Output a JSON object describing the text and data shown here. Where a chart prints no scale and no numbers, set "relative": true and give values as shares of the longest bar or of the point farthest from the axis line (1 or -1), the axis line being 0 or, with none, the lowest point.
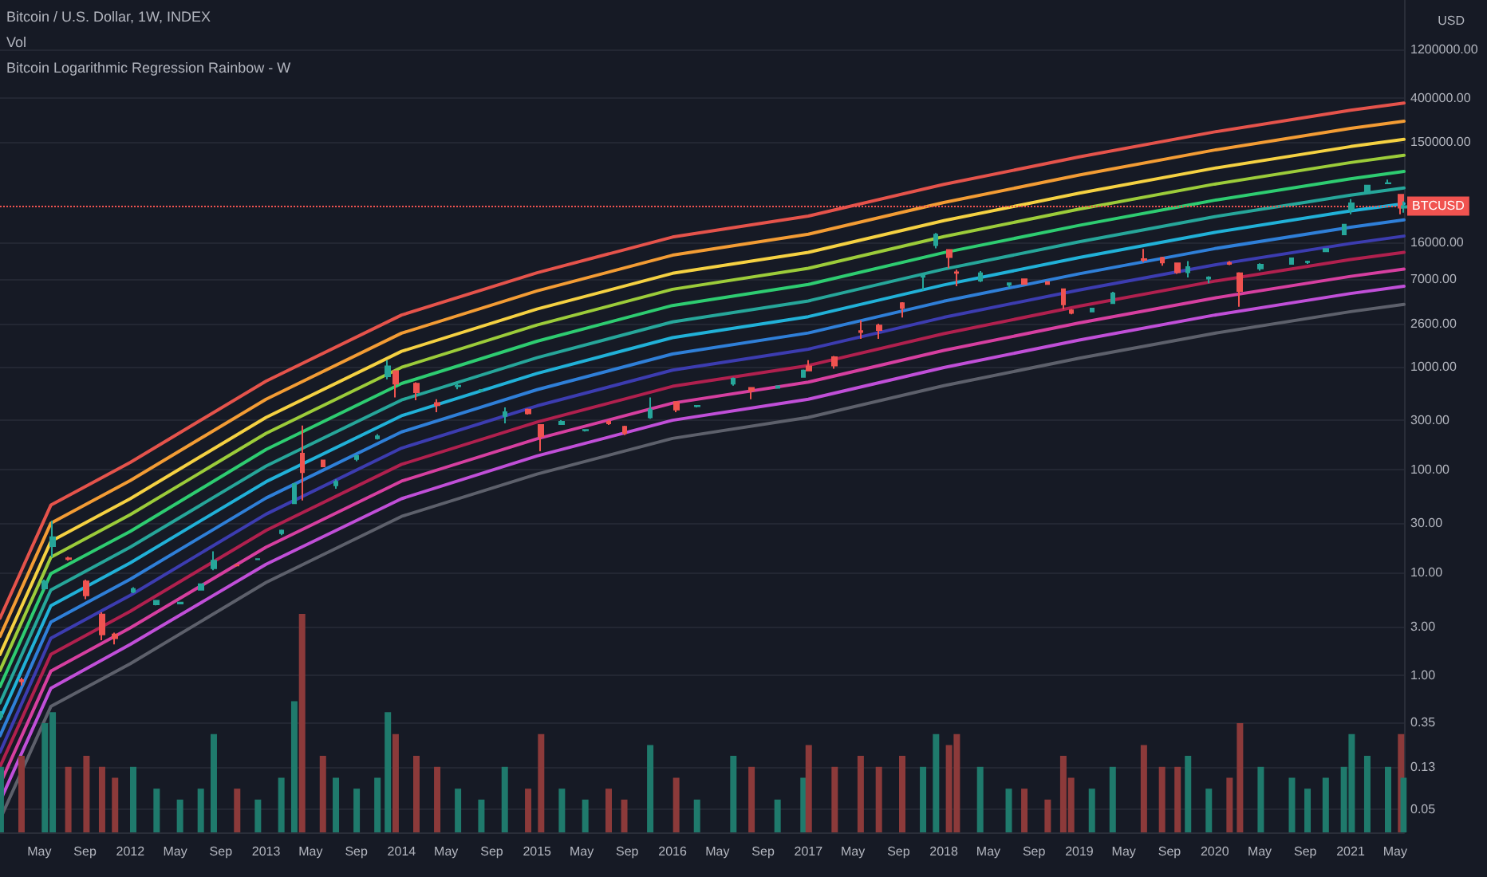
{
  "chart_data": [
    {
      "type": "candlestick",
      "title": "Bitcoin / U.S. Dollar, 1W, INDEX",
      "ylabel": "USD",
      "annotations": [
        "Bitcoin Logarithmic Regression Rainbow - W"
      ],
      "x": [
        "2011-01-17",
        "2011-03-14",
        "2011-05-16",
        "2011-06-06",
        "2011-07-18",
        "2011-09-05",
        "2011-10-17",
        "2011-11-21",
        "2012-01-09",
        "2012-03-12",
        "2012-05-14",
        "2012-07-09",
        "2012-08-13",
        "2012-10-15",
        "2012-12-10",
        "2013-02-11",
        "2013-03-18",
        "2013-04-08",
        "2013-06-03",
        "2013-07-08",
        "2013-09-02",
        "2013-10-28",
        "2013-11-25",
        "2013-12-16",
        "2014-02-10",
        "2014-04-07",
        "2014-06-02",
        "2014-08-04",
        "2014-10-06",
        "2014-12-08",
        "2015-01-12",
        "2015-03-09",
        "2015-05-11",
        "2015-07-13",
        "2015-08-24",
        "2015-11-02",
        "2016-01-11",
        "2016-03-07",
        "2016-06-13",
        "2016-08-01",
        "2016-10-10",
        "2016-12-19",
        "2017-01-02",
        "2017-03-13",
        "2017-05-22",
        "2017-07-10",
        "2017-09-11",
        "2017-11-06",
        "2017-12-11",
        "2018-01-15",
        "2018-02-05",
        "2018-04-09",
        "2018-06-25",
        "2018-08-06",
        "2018-10-08",
        "2018-11-19",
        "2018-12-10",
        "2019-02-04",
        "2019-04-01",
        "2019-06-24",
        "2019-08-12",
        "2019-09-23",
        "2019-10-21",
        "2019-12-16",
        "2020-02-10",
        "2020-03-09",
        "2020-05-04",
        "2020-07-27",
        "2020-09-07",
        "2020-10-26",
        "2020-12-14",
        "2021-01-04",
        "2021-02-15",
        "2021-04-12",
        "2021-05-17",
        "2021-05-24"
      ],
      "ohlc": [
        [
          0.4,
          0.45,
          0.38,
          0.42
        ],
        [
          0.9,
          0.95,
          0.8,
          0.88
        ],
        [
          7,
          8.5,
          6.8,
          8.2
        ],
        [
          18,
          31.9,
          14,
          22
        ],
        [
          13.7,
          14.2,
          13,
          13.5
        ],
        [
          8.2,
          8.5,
          5.5,
          6
        ],
        [
          3.9,
          4.1,
          2.2,
          2.5
        ],
        [
          2.5,
          2.6,
          2,
          2.3
        ],
        [
          6.5,
          7.2,
          6.3,
          6.9
        ],
        [
          4.9,
          5.4,
          4.8,
          5.3
        ],
        [
          5,
          5.1,
          4.9,
          5.1
        ],
        [
          6.8,
          7.8,
          6.7,
          7.7
        ],
        [
          11,
          16,
          10.5,
          13
        ],
        [
          11.8,
          12,
          11.6,
          11.7
        ],
        [
          13.4,
          13.6,
          13.2,
          13.5
        ],
        [
          24,
          26,
          23,
          25.5
        ],
        [
          47,
          74,
          46,
          72
        ],
        [
          142,
          266,
          50,
          94
        ],
        [
          122,
          124,
          105,
          107
        ],
        [
          70,
          80,
          65,
          76
        ],
        [
          126,
          138,
          120,
          135
        ],
        [
          200,
          220,
          195,
          210
        ],
        [
          800,
          1150,
          750,
          1000
        ],
        [
          900,
          900,
          500,
          680
        ],
        [
          680,
          700,
          470,
          560
        ],
        [
          440,
          480,
          360,
          420
        ],
        [
          640,
          680,
          600,
          650
        ],
        [
          580,
          600,
          560,
          590
        ],
        [
          330,
          400,
          280,
          360
        ],
        [
          380,
          390,
          340,
          350
        ],
        [
          270,
          275,
          150,
          210
        ],
        [
          275,
          300,
          270,
          290
        ],
        [
          240,
          245,
          233,
          242
        ],
        [
          290,
          300,
          270,
          280
        ],
        [
          260,
          265,
          215,
          225
        ],
        [
          320,
          500,
          310,
          380
        ],
        [
          450,
          460,
          360,
          380
        ],
        [
          410,
          420,
          400,
          415
        ],
        [
          680,
          780,
          650,
          760
        ],
        [
          620,
          630,
          480,
          580
        ],
        [
          620,
          650,
          615,
          640
        ],
        [
          790,
          930,
          780,
          910
        ],
        [
          1000,
          1150,
          900,
          910
        ],
        [
          1230,
          1260,
          950,
          1020
        ],
        [
          2200,
          2790,
          1850,
          2150
        ],
        [
          2500,
          2600,
          1850,
          2250
        ],
        [
          4100,
          4200,
          2980,
          3700
        ],
        [
          7400,
          7800,
          5500,
          7800
        ],
        [
          15000,
          19700,
          14000,
          19000
        ],
        [
          13500,
          13700,
          9000,
          11500
        ],
        [
          8200,
          8700,
          6000,
          8100
        ],
        [
          6800,
          8400,
          6600,
          8000
        ],
        [
          6200,
          6500,
          5800,
          6400
        ],
        [
          7000,
          7150,
          6200,
          6300
        ],
        [
          6600,
          6700,
          6200,
          6300
        ],
        [
          5600,
          5700,
          3600,
          4000
        ],
        [
          3500,
          3600,
          3200,
          3300
        ],
        [
          3400,
          3700,
          3350,
          3650
        ],
        [
          4100,
          5300,
          4100,
          5100
        ],
        [
          11000,
          13800,
          10300,
          10800
        ],
        [
          11300,
          11600,
          9500,
          10200
        ],
        [
          10000,
          10100,
          7900,
          8200
        ],
        [
          8200,
          10500,
          7300,
          9200
        ],
        [
          7100,
          7500,
          6400,
          7300
        ],
        [
          10100,
          10500,
          9600,
          9900
        ],
        [
          8000,
          8200,
          3800,
          5400
        ],
        [
          8900,
          10000,
          8500,
          9700
        ],
        [
          9900,
          11400,
          9900,
          11200
        ],
        [
          10300,
          10600,
          9900,
          10400
        ],
        [
          13100,
          14000,
          12900,
          13800
        ],
        [
          19100,
          24200,
          19000,
          23800
        ],
        [
          33000,
          42000,
          30000,
          38200
        ],
        [
          48000,
          58000,
          47000,
          57000
        ],
        [
          59800,
          64900,
          59000,
          60000
        ],
        [
          46400,
          46600,
          30000,
          34700
        ],
        [
          34700,
          40000,
          31000,
          36000
        ]
      ],
      "series": [
        {
          "type": "line",
          "color": "#5d606b",
          "x": [
            "2011-01-15",
            "2011-06-01",
            "2012-01-01",
            "2013-01-01",
            "2014-01-01",
            "2015-01-01",
            "2016-01-01",
            "2017-01-01",
            "2018-01-01",
            "2019-01-01",
            "2020-01-01",
            "2021-01-01",
            "2021-05-25"
          ],
          "values": [
            0.04,
            0.5,
            1.3,
            8,
            35,
            90,
            200,
            320,
            650,
            1200,
            2100,
            3400,
            4000
          ]
        },
        {
          "type": "line",
          "color": "#c04fd8",
          "x": [
            "2011-01-15",
            "2011-06-01",
            "2012-01-01",
            "2013-01-01",
            "2014-01-01",
            "2015-01-01",
            "2016-01-01",
            "2017-01-01",
            "2018-01-01",
            "2019-01-01",
            "2020-01-01",
            "2021-01-01",
            "2021-05-25"
          ],
          "values": [
            0.06,
            0.75,
            2,
            12,
            52,
            135,
            300,
            480,
            975,
            1800,
            3150,
            5100,
            6000
          ]
        },
        {
          "type": "line",
          "color": "#d63fa0",
          "x": [
            "2011-01-15",
            "2011-06-01",
            "2012-01-01",
            "2013-01-01",
            "2014-01-01",
            "2015-01-01",
            "2016-01-01",
            "2017-01-01",
            "2018-01-01",
            "2019-01-01",
            "2020-01-01",
            "2021-01-01",
            "2021-05-25"
          ],
          "values": [
            0.088,
            1.1,
            2.9,
            17.6,
            77,
            198,
            440,
            704,
            1430,
            2640,
            4620,
            7480,
            8800
          ]
        },
        {
          "type": "line",
          "color": "#b0204e",
          "x": [
            "2011-01-15",
            "2011-06-01",
            "2012-01-01",
            "2013-01-01",
            "2014-01-01",
            "2015-01-01",
            "2016-01-01",
            "2017-01-01",
            "2018-01-01",
            "2019-01-01",
            "2020-01-01",
            "2021-01-01",
            "2021-05-25"
          ],
          "values": [
            0.13,
            1.6,
            4.2,
            25.6,
            112,
            288,
            640,
            1020,
            2080,
            3840,
            6720,
            10900,
            12800
          ]
        },
        {
          "type": "line",
          "color": "#3c3cb0",
          "x": [
            "2011-01-15",
            "2011-06-01",
            "2012-01-01",
            "2013-01-01",
            "2014-01-01",
            "2015-01-01",
            "2016-01-01",
            "2017-01-01",
            "2018-01-01",
            "2019-01-01",
            "2020-01-01",
            "2021-01-01",
            "2021-05-25"
          ],
          "values": [
            0.18,
            2.3,
            6,
            36.8,
            161,
            414,
            920,
            1470,
            2990,
            5520,
            9660,
            15600,
            18400
          ]
        },
        {
          "type": "line",
          "color": "#2f7fd8",
          "x": [
            "2011-01-15",
            "2011-06-01",
            "2012-01-01",
            "2013-01-01",
            "2014-01-01",
            "2015-01-01",
            "2016-01-01",
            "2017-01-01",
            "2018-01-01",
            "2019-01-01",
            "2020-01-01",
            "2021-01-01",
            "2021-05-25"
          ],
          "values": [
            0.26,
            3.3,
            8.6,
            52.8,
            231,
            594,
            1320,
            2110,
            4290,
            7920,
            13900,
            22400,
            26400
          ]
        },
        {
          "type": "line",
          "color": "#21b1d8",
          "x": [
            "2011-01-15",
            "2011-06-01",
            "2012-01-01",
            "2013-01-01",
            "2014-01-01",
            "2015-01-01",
            "2016-01-01",
            "2017-01-01",
            "2018-01-01",
            "2019-01-01",
            "2020-01-01",
            "2021-01-01",
            "2021-05-25"
          ],
          "values": [
            0.38,
            4.75,
            12.4,
            76,
            332,
            855,
            1900,
            3040,
            6180,
            11400,
            20000,
            32300,
            38000
          ]
        },
        {
          "type": "line",
          "color": "#26a69a",
          "x": [
            "2011-01-15",
            "2011-06-01",
            "2012-01-01",
            "2013-01-01",
            "2014-01-01",
            "2015-01-01",
            "2016-01-01",
            "2017-01-01",
            "2018-01-01",
            "2019-01-01",
            "2020-01-01",
            "2021-01-01",
            "2021-05-25"
          ],
          "values": [
            0.54,
            6.75,
            17.6,
            108,
            472,
            1215,
            2700,
            4320,
            8780,
            16200,
            28400,
            45900,
            54000
          ]
        },
        {
          "type": "line",
          "color": "#2ecc71",
          "x": [
            "2011-01-15",
            "2011-06-01",
            "2012-01-01",
            "2013-01-01",
            "2014-01-01",
            "2015-01-01",
            "2016-01-01",
            "2017-01-01",
            "2018-01-01",
            "2019-01-01",
            "2020-01-01",
            "2021-01-01",
            "2021-05-25"
          ],
          "values": [
            0.78,
            9.75,
            25,
            156,
            682,
            1755,
            3900,
            6240,
            12700,
            23400,
            41000,
            66300,
            78000
          ]
        },
        {
          "type": "line",
          "color": "#9ccc3a",
          "x": [
            "2011-01-15",
            "2011-06-01",
            "2012-01-01",
            "2013-01-01",
            "2014-01-01",
            "2015-01-01",
            "2016-01-01",
            "2017-01-01",
            "2018-01-01",
            "2019-01-01",
            "2020-01-01",
            "2021-01-01",
            "2021-05-25"
          ],
          "values": [
            1.12,
            14,
            36.4,
            224,
            980,
            2520,
            5600,
            8960,
            18200,
            33600,
            58800,
            95200,
            112000
          ]
        },
        {
          "type": "line",
          "color": "#f5d142",
          "x": [
            "2011-01-15",
            "2011-06-01",
            "2012-01-01",
            "2013-01-01",
            "2014-01-01",
            "2015-01-01",
            "2016-01-01",
            "2017-01-01",
            "2018-01-01",
            "2019-01-01",
            "2020-01-01",
            "2021-01-01",
            "2021-05-25"
          ],
          "values": [
            1.6,
            20,
            52,
            320,
            1400,
            3600,
            8000,
            12800,
            26000,
            48000,
            84000,
            136000,
            160000
          ]
        },
        {
          "type": "line",
          "color": "#f39c34",
          "x": [
            "2011-01-15",
            "2011-06-01",
            "2012-01-01",
            "2013-01-01",
            "2014-01-01",
            "2015-01-01",
            "2016-01-01",
            "2017-01-01",
            "2018-01-01",
            "2019-01-01",
            "2020-01-01",
            "2021-01-01",
            "2021-05-25"
          ],
          "values": [
            2.4,
            30,
            78,
            480,
            2100,
            5400,
            12000,
            19200,
            39000,
            72000,
            126000,
            204000,
            240000
          ]
        },
        {
          "type": "line",
          "color": "#e5534b",
          "x": [
            "2011-01-15",
            "2011-06-01",
            "2012-01-01",
            "2013-01-01",
            "2014-01-01",
            "2015-01-01",
            "2016-01-01",
            "2017-01-01",
            "2018-01-01",
            "2019-01-01",
            "2020-01-01",
            "2021-01-01",
            "2021-05-25"
          ],
          "values": [
            3.6,
            45,
            117,
            720,
            3150,
            8100,
            18000,
            28800,
            58500,
            108000,
            189000,
            306000,
            360000
          ]
        }
      ],
      "ref_lines": [
        {
          "axis": "y",
          "value": 36000,
          "label": "BTCUSD",
          "color": "#f05350",
          "line_style": "dotted"
        }
      ],
      "log": "y",
      "grid": "y",
      "marker": "none",
      "line_style": "solid",
      "xlim": [
        "2011-01-15",
        "2021-05-25"
      ],
      "xticks": [
        {
          "value": "2011-05-01",
          "label": "May"
        },
        {
          "value": "2011-09-01",
          "label": "Sep"
        },
        {
          "value": "2012-01-01",
          "label": "2012"
        },
        {
          "value": "2012-05-01",
          "label": "May"
        },
        {
          "value": "2012-09-01",
          "label": "Sep"
        },
        {
          "value": "2013-01-01",
          "label": "2013"
        },
        {
          "value": "2013-05-01",
          "label": "May"
        },
        {
          "value": "2013-09-01",
          "label": "Sep"
        },
        {
          "value": "2014-01-01",
          "label": "2014"
        },
        {
          "value": "2014-05-01",
          "label": "May"
        },
        {
          "value": "2014-09-01",
          "label": "Sep"
        },
        {
          "value": "2015-01-01",
          "label": "2015"
        },
        {
          "value": "2015-05-01",
          "label": "May"
        },
        {
          "value": "2015-09-01",
          "label": "Sep"
        },
        {
          "value": "2016-01-01",
          "label": "2016"
        },
        {
          "value": "2016-05-01",
          "label": "May"
        },
        {
          "value": "2016-09-01",
          "label": "Sep"
        },
        {
          "value": "2017-01-01",
          "label": "2017"
        },
        {
          "value": "2017-05-01",
          "label": "May"
        },
        {
          "value": "2017-09-01",
          "label": "Sep"
        },
        {
          "value": "2018-01-01",
          "label": "2018"
        },
        {
          "value": "2018-05-01",
          "label": "May"
        },
        {
          "value": "2018-09-01",
          "label": "Sep"
        },
        {
          "value": "2019-01-01",
          "label": "2019"
        },
        {
          "value": "2019-05-01",
          "label": "May"
        },
        {
          "value": "2019-09-01",
          "label": "Sep"
        },
        {
          "value": "2020-01-01",
          "label": "2020"
        },
        {
          "value": "2020-05-01",
          "label": "May"
        },
        {
          "value": "2020-09-01",
          "label": "Sep"
        },
        {
          "value": "2021-01-01",
          "label": "2021"
        },
        {
          "value": "2021-05-01",
          "label": "May"
        }
      ],
      "ylim": [
        0.03,
        3600000
      ],
      "yticks": [
        {
          "value": 0.05,
          "label": "0.05"
        },
        {
          "value": 0.13,
          "label": "0.13"
        },
        {
          "value": 0.35,
          "label": "0.35"
        },
        {
          "value": 1,
          "label": "1.00"
        },
        {
          "value": 3,
          "label": "3.00"
        },
        {
          "value": 10,
          "label": "10.00"
        },
        {
          "value": 30,
          "label": "30.00"
        },
        {
          "value": 100,
          "label": "100.00"
        },
        {
          "value": 300,
          "label": "300.00"
        },
        {
          "value": 1000,
          "label": "1000.00"
        },
        {
          "value": 2600,
          "label": "2600.00"
        },
        {
          "value": 7000,
          "label": "7000.00"
        },
        {
          "value": 16000,
          "label": "16000.00"
        },
        {
          "value": 150000,
          "label": "150000.00"
        },
        {
          "value": 400000,
          "label": "400000.00"
        },
        {
          "value": 1200000,
          "label": "1200000.00"
        }
      ]
    },
    {
      "type": "bar",
      "title": "Vol",
      "relative": true,
      "xlim": [
        "2011-01-15",
        "2021-05-25"
      ],
      "x": [
        "2011-01-17",
        "2011-03-14",
        "2011-05-16",
        "2011-06-06",
        "2011-07-18",
        "2011-09-05",
        "2011-10-17",
        "2011-11-21",
        "2012-01-09",
        "2012-03-12",
        "2012-05-14",
        "2012-07-09",
        "2012-08-13",
        "2012-10-15",
        "2012-12-10",
        "2013-02-11",
        "2013-03-18",
        "2013-04-08",
        "2013-06-03",
        "2013-07-08",
        "2013-09-02",
        "2013-10-28",
        "2013-11-25",
        "2013-12-16",
        "2014-02-10",
        "2014-04-07",
        "2014-06-02",
        "2014-08-04",
        "2014-10-06",
        "2014-12-08",
        "2015-01-12",
        "2015-03-09",
        "2015-05-11",
        "2015-07-13",
        "2015-08-24",
        "2015-11-02",
        "2016-01-11",
        "2016-03-07",
        "2016-06-13",
        "2016-08-01",
        "2016-10-10",
        "2016-12-19",
        "2017-01-02",
        "2017-03-13",
        "2017-05-22",
        "2017-07-10",
        "2017-09-11",
        "2017-11-06",
        "2017-12-11",
        "2018-01-15",
        "2018-02-05",
        "2018-04-09",
        "2018-06-25",
        "2018-08-06",
        "2018-10-08",
        "2018-11-19",
        "2018-12-10",
        "2019-02-04",
        "2019-04-01",
        "2019-06-24",
        "2019-08-12",
        "2019-09-23",
        "2019-10-21",
        "2019-12-16",
        "2020-02-10",
        "2020-03-09",
        "2020-05-04",
        "2020-07-27",
        "2020-09-07",
        "2020-10-26",
        "2020-12-14",
        "2021-01-04",
        "2021-02-15",
        "2021-04-12",
        "2021-05-17",
        "2021-05-24"
      ],
      "values": [
        0.3,
        0.35,
        0.5,
        0.55,
        0.3,
        0.35,
        0.3,
        0.25,
        0.3,
        0.2,
        0.15,
        0.2,
        0.45,
        0.2,
        0.15,
        0.25,
        0.6,
        1,
        0.35,
        0.25,
        0.2,
        0.25,
        0.55,
        0.45,
        0.35,
        0.3,
        0.2,
        0.15,
        0.3,
        0.2,
        0.45,
        0.2,
        0.15,
        0.2,
        0.15,
        0.4,
        0.25,
        0.15,
        0.35,
        0.3,
        0.15,
        0.25,
        0.4,
        0.3,
        0.35,
        0.3,
        0.35,
        0.3,
        0.45,
        0.4,
        0.45,
        0.3,
        0.2,
        0.2,
        0.15,
        0.35,
        0.25,
        0.2,
        0.3,
        0.4,
        0.3,
        0.3,
        0.35,
        0.2,
        0.25,
        0.5,
        0.3,
        0.25,
        0.2,
        0.25,
        0.3,
        0.45,
        0.35,
        0.3,
        0.45,
        0.25
      ],
      "colors": [
        "#1f7a6c",
        "#8c3a3a",
        "#1f7a6c",
        "#1f7a6c",
        "#8c3a3a",
        "#8c3a3a",
        "#8c3a3a",
        "#8c3a3a",
        "#1f7a6c",
        "#1f7a6c",
        "#1f7a6c",
        "#1f7a6c",
        "#1f7a6c",
        "#8c3a3a",
        "#1f7a6c",
        "#1f7a6c",
        "#1f7a6c",
        "#8c3a3a",
        "#8c3a3a",
        "#1f7a6c",
        "#1f7a6c",
        "#1f7a6c",
        "#1f7a6c",
        "#8c3a3a",
        "#8c3a3a",
        "#8c3a3a",
        "#1f7a6c",
        "#1f7a6c",
        "#1f7a6c",
        "#8c3a3a",
        "#8c3a3a",
        "#1f7a6c",
        "#1f7a6c",
        "#8c3a3a",
        "#8c3a3a",
        "#1f7a6c",
        "#8c3a3a",
        "#1f7a6c",
        "#1f7a6c",
        "#8c3a3a",
        "#1f7a6c",
        "#1f7a6c",
        "#8c3a3a",
        "#8c3a3a",
        "#8c3a3a",
        "#8c3a3a",
        "#8c3a3a",
        "#1f7a6c",
        "#1f7a6c",
        "#8c3a3a",
        "#8c3a3a",
        "#1f7a6c",
        "#1f7a6c",
        "#8c3a3a",
        "#8c3a3a",
        "#8c3a3a",
        "#8c3a3a",
        "#1f7a6c",
        "#1f7a6c",
        "#8c3a3a",
        "#8c3a3a",
        "#8c3a3a",
        "#1f7a6c",
        "#1f7a6c",
        "#8c3a3a",
        "#8c3a3a",
        "#1f7a6c",
        "#1f7a6c",
        "#1f7a6c",
        "#1f7a6c",
        "#1f7a6c",
        "#1f7a6c",
        "#1f7a6c",
        "#1f7a6c",
        "#8c3a3a",
        "#1f7a6c"
      ]
    }
  ]
}
